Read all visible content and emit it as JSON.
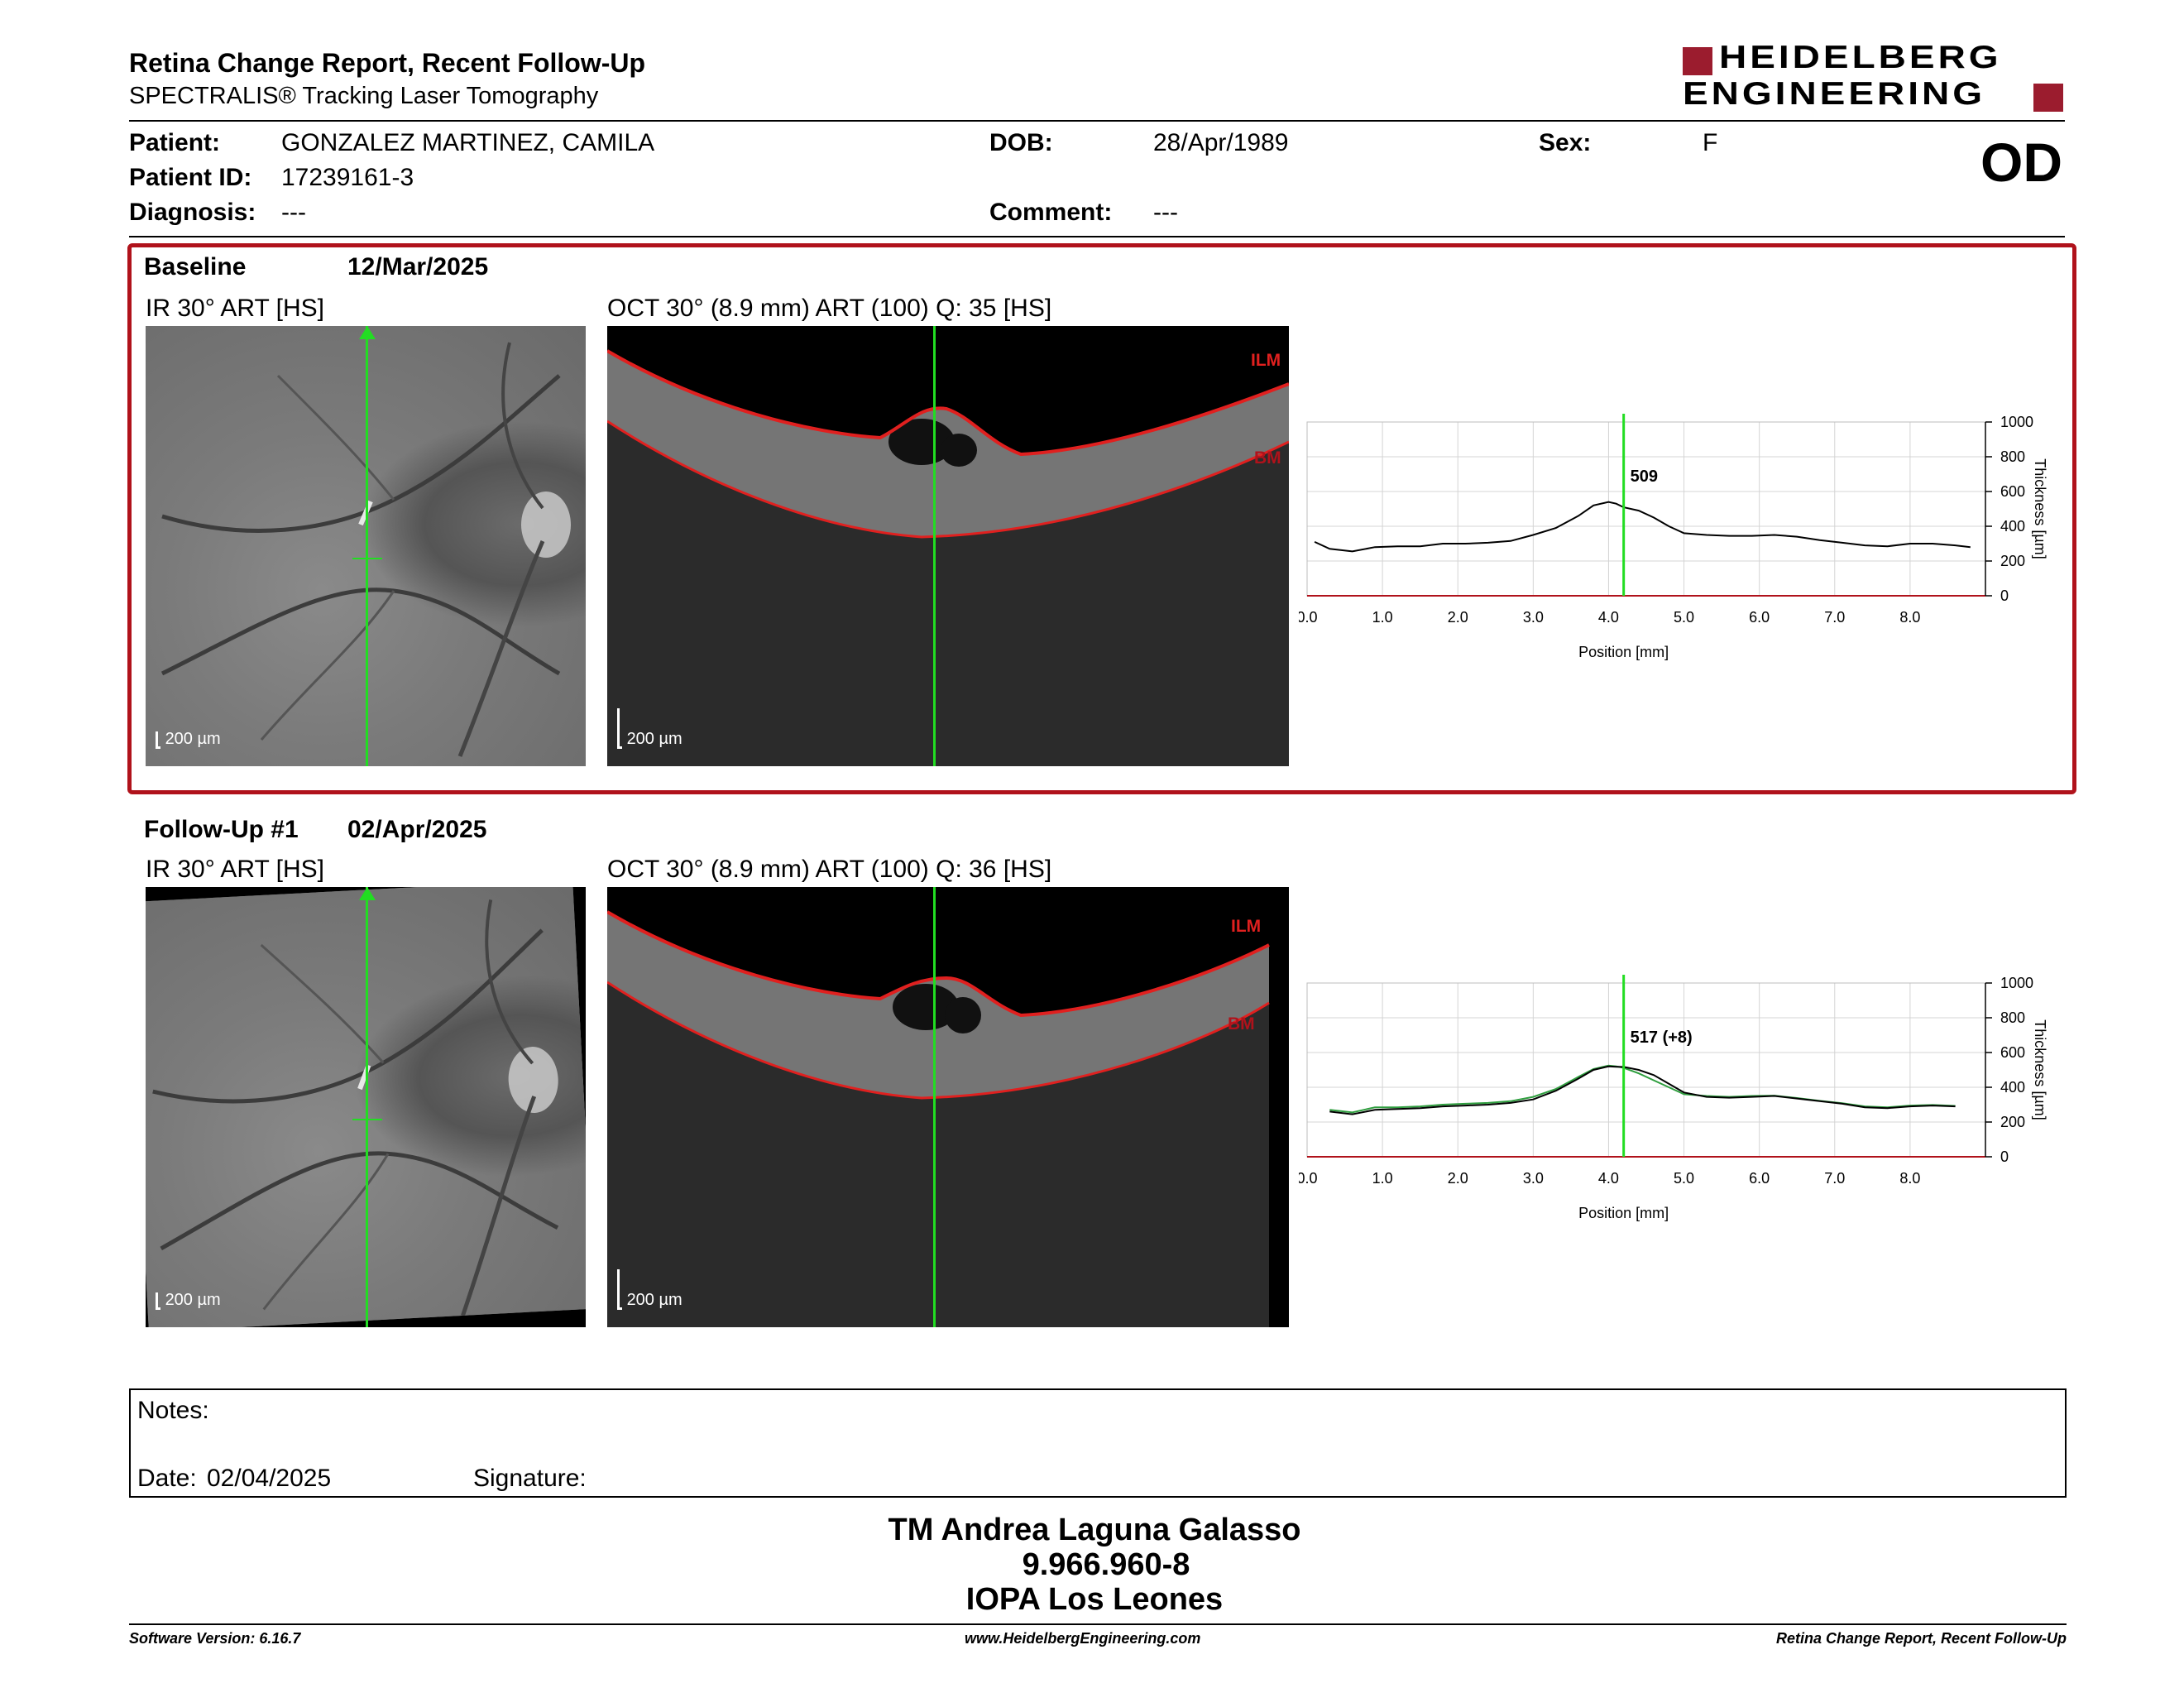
{
  "header": {
    "title": "Retina Change Report, Recent Follow-Up",
    "subtitle": "SPECTRALIS® Tracking Laser Tomography",
    "logo_line1": "HEIDELBERG",
    "logo_line2": "ENGINEERING",
    "eye": "OD"
  },
  "patient": {
    "patient_label": "Patient:",
    "patient_value": "GONZALEZ MARTINEZ, CAMILA",
    "id_label": "Patient ID:",
    "id_value": "17239161-3",
    "diagnosis_label": "Diagnosis:",
    "diagnosis_value": "---",
    "dob_label": "DOB:",
    "dob_value": "28/Apr/1989",
    "comment_label": "Comment:",
    "comment_value": "---",
    "sex_label": "Sex:",
    "sex_value": "F"
  },
  "exams": [
    {
      "label": "Baseline",
      "date": "12/Mar/2025",
      "ir_title": "IR 30° ART [HS]",
      "oct_title": "OCT 30° (8.9 mm) ART (100) Q: 35 [HS]",
      "scale_ir": "200 µm",
      "scale_oct": "200 µm",
      "ilm": "ILM",
      "bm": "BM",
      "marker_label": "509"
    },
    {
      "label": "Follow-Up #1",
      "date": "02/Apr/2025",
      "ir_title": "IR 30° ART [HS]",
      "oct_title": "OCT 30° (8.9 mm) ART (100) Q: 36 [HS]",
      "scale_ir": "200 µm",
      "scale_oct": "200 µm",
      "ilm": "ILM",
      "bm": "BM",
      "marker_label": "517 (+8)"
    }
  ],
  "chart_data": [
    {
      "type": "line",
      "xlabel": "Position [mm]",
      "ylabel": "Thickness [µm]",
      "xlim": [
        0.0,
        9.0
      ],
      "ylim": [
        0,
        1000
      ],
      "xticks": [
        "0.0",
        "1.0",
        "2.0",
        "3.0",
        "4.0",
        "5.0",
        "6.0",
        "7.0",
        "8.0"
      ],
      "yticks": [
        "0",
        "200",
        "400",
        "600",
        "800",
        "1000"
      ],
      "marker_x": 4.2,
      "marker_label": "509",
      "grid": true,
      "series": [
        {
          "color": "#000000",
          "x": [
            0.1,
            0.3,
            0.6,
            0.9,
            1.2,
            1.5,
            1.8,
            2.1,
            2.4,
            2.7,
            3.0,
            3.3,
            3.6,
            3.8,
            4.0,
            4.1,
            4.2,
            4.4,
            4.6,
            4.8,
            5.0,
            5.3,
            5.6,
            5.9,
            6.2,
            6.5,
            6.8,
            7.1,
            7.4,
            7.7,
            8.0,
            8.3,
            8.6,
            8.8
          ],
          "y": [
            310,
            270,
            255,
            280,
            285,
            285,
            300,
            300,
            305,
            315,
            350,
            390,
            460,
            520,
            540,
            530,
            509,
            490,
            450,
            400,
            360,
            350,
            345,
            345,
            350,
            340,
            320,
            305,
            290,
            285,
            300,
            300,
            290,
            280
          ]
        }
      ]
    },
    {
      "type": "line",
      "xlabel": "Position [mm]",
      "ylabel": "Thickness [µm]",
      "xlim": [
        0.0,
        9.0
      ],
      "ylim": [
        0,
        1000
      ],
      "xticks": [
        "0.0",
        "1.0",
        "2.0",
        "3.0",
        "4.0",
        "5.0",
        "6.0",
        "7.0",
        "8.0"
      ],
      "yticks": [
        "0",
        "200",
        "400",
        "600",
        "800",
        "1000"
      ],
      "marker_x": 4.2,
      "marker_label": "517 (+8)",
      "grid": true,
      "series": [
        {
          "color": "#000000",
          "x": [
            0.3,
            0.6,
            0.9,
            1.2,
            1.5,
            1.8,
            2.1,
            2.4,
            2.7,
            3.0,
            3.3,
            3.6,
            3.8,
            4.0,
            4.1,
            4.2,
            4.4,
            4.6,
            4.8,
            5.0,
            5.3,
            5.6,
            5.9,
            6.2,
            6.5,
            6.8,
            7.1,
            7.4,
            7.7,
            8.0,
            8.3,
            8.6
          ],
          "y": [
            260,
            245,
            270,
            275,
            280,
            290,
            295,
            300,
            310,
            330,
            380,
            450,
            500,
            520,
            518,
            517,
            500,
            470,
            420,
            370,
            345,
            340,
            345,
            350,
            335,
            320,
            305,
            285,
            280,
            290,
            295,
            290
          ]
        },
        {
          "color": "#2e9e3e",
          "x": [
            0.3,
            0.6,
            0.9,
            1.2,
            1.5,
            1.8,
            2.1,
            2.4,
            2.7,
            3.0,
            3.3,
            3.6,
            3.8,
            4.0,
            4.1,
            4.2,
            4.4,
            4.6,
            4.8,
            5.0,
            5.3,
            5.6,
            5.9,
            6.2,
            6.5,
            6.8,
            7.1,
            7.4,
            7.7,
            8.0,
            8.3,
            8.6
          ],
          "y": [
            270,
            255,
            285,
            285,
            290,
            300,
            305,
            310,
            320,
            345,
            390,
            460,
            505,
            525,
            520,
            512,
            480,
            440,
            400,
            360,
            350,
            345,
            350,
            352,
            338,
            322,
            308,
            290,
            285,
            295,
            298,
            293
          ]
        }
      ]
    }
  ],
  "notes": {
    "notes_label": "Notes:",
    "date_label": "Date:",
    "date_value": "02/04/2025",
    "signature_label": "Signature:"
  },
  "signature_block": {
    "line1": "TM Andrea Laguna Galasso",
    "line2": "9.966.960-8",
    "line3": "IOPA Los Leones"
  },
  "footer": {
    "left": "Software Version: 6.16.7",
    "center": "www.HeidelbergEngineering.com",
    "right": "Retina Change Report, Recent Follow-Up"
  },
  "colors": {
    "accent_red": "#b0121b",
    "scan_line": "#22dd22",
    "ilm_line": "#e0201f",
    "logo_red": "#9b1c2e"
  }
}
